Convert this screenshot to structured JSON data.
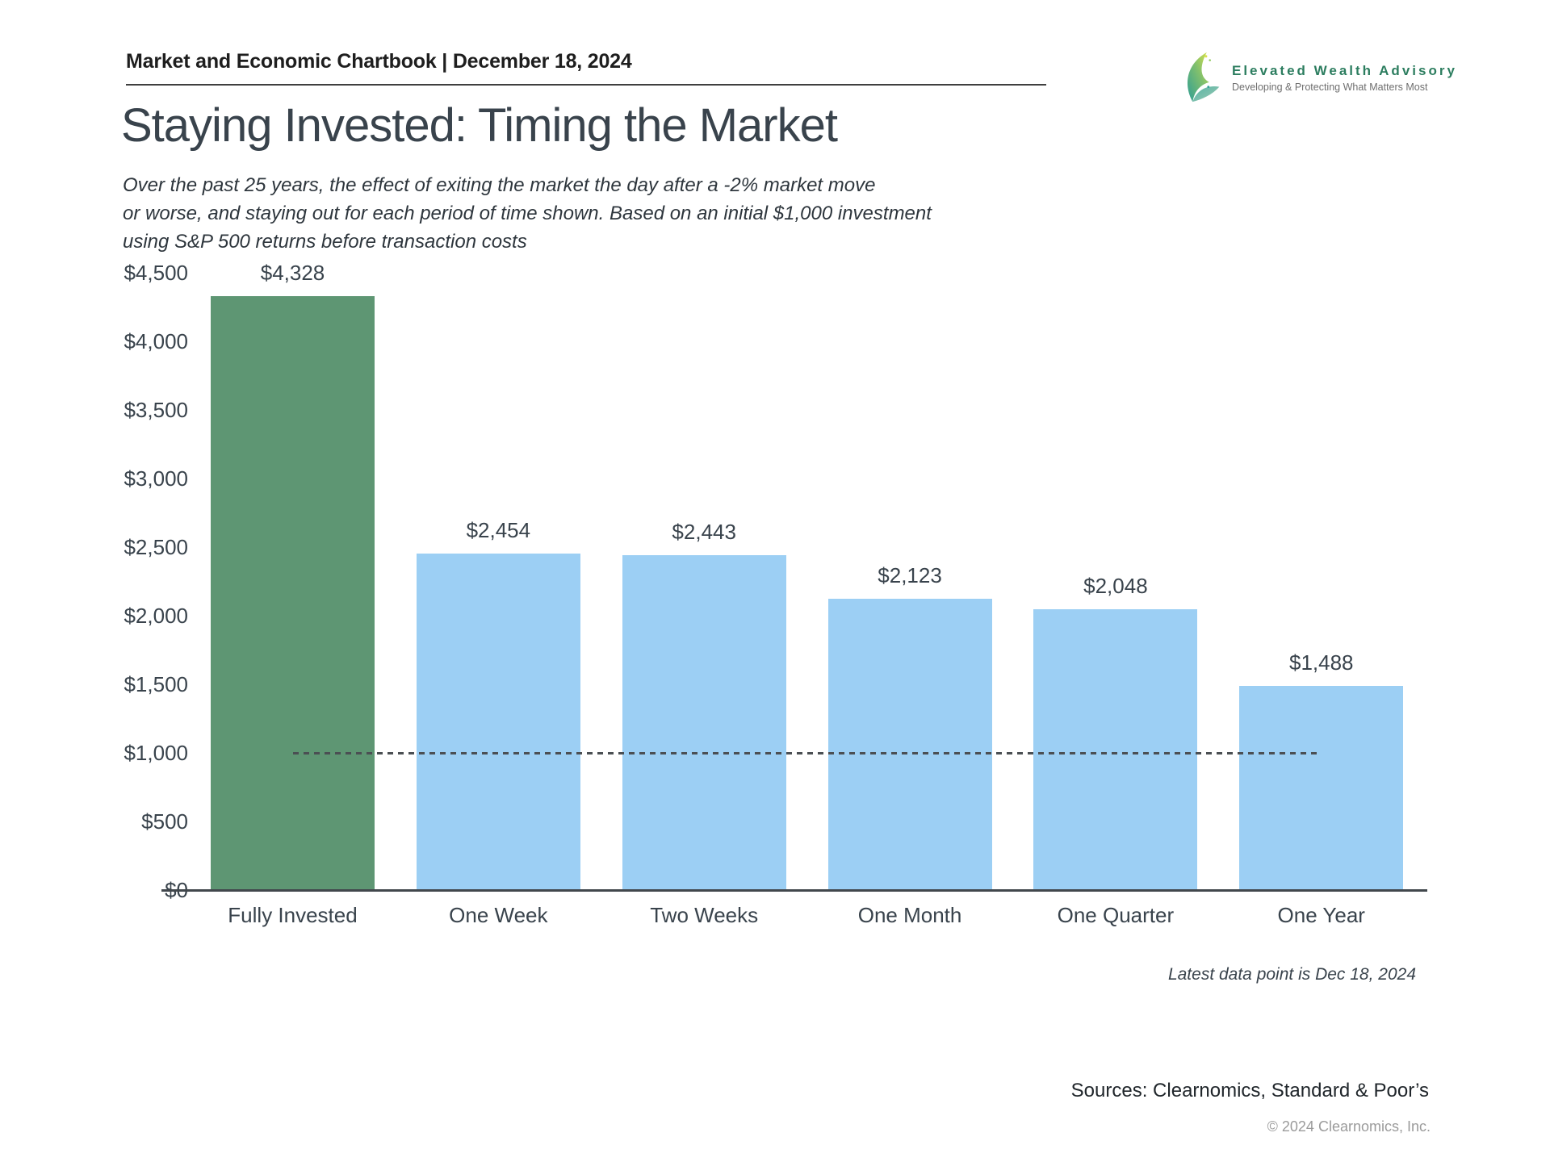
{
  "header": {
    "chartbook_title": "Market and Economic Chartbook | December 18, 2024"
  },
  "logo": {
    "name": "Elevated Wealth Advisory",
    "tagline": "Developing & Protecting What Matters Most",
    "name_color": "#2C7D5F"
  },
  "page": {
    "title": "Staying Invested: Timing the Market",
    "subtitle_lines": [
      "Over the past 25 years, the effect of exiting the market the day after a -2% market move",
      "or worse, and staying out for each period of time shown. Based on an initial $1,000 investment",
      "using S&P 500 returns before transaction costs"
    ]
  },
  "chart_data": {
    "type": "bar",
    "title": "Staying Invested: Timing the Market",
    "categories": [
      "Fully Invested",
      "One Week",
      "Two Weeks",
      "One Month",
      "One Quarter",
      "One Year"
    ],
    "values": [
      4328,
      2454,
      2443,
      2123,
      2048,
      1488
    ],
    "value_labels": [
      "$4,328",
      "$2,454",
      "$2,443",
      "$2,123",
      "$2,048",
      "$1,488"
    ],
    "bar_colors": [
      "#5E9673",
      "#9CCFF4",
      "#9CCFF4",
      "#9CCFF4",
      "#9CCFF4",
      "#9CCFF4"
    ],
    "ylim": [
      0,
      4500
    ],
    "y_tick_step": 500,
    "y_tick_labels": [
      "$0",
      "$500",
      "$1,000",
      "$1,500",
      "$2,000",
      "$2,500",
      "$3,000",
      "$3,500",
      "$4,000",
      "$4,500"
    ],
    "reference_line": {
      "value": 1000,
      "style": "dotted"
    },
    "grid": false,
    "legend": false,
    "accent_green": "#5E9673",
    "accent_blue": "#9CCFF4"
  },
  "footer": {
    "latest_note": "Latest data point is Dec 18, 2024",
    "sources": "Sources: Clearnomics, Standard & Poor’s",
    "copyright": "© 2024 Clearnomics, Inc."
  }
}
